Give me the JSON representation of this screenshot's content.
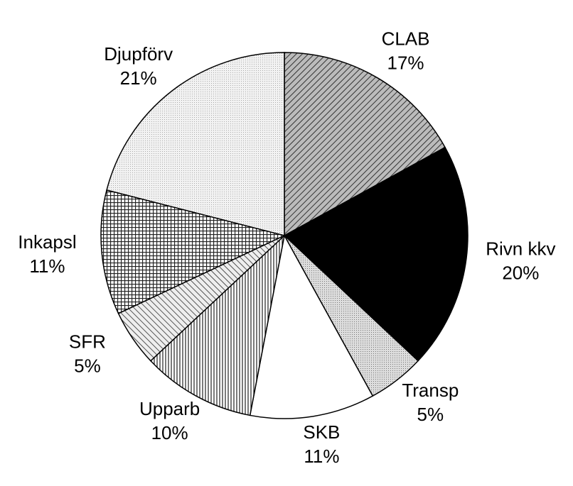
{
  "chart_data": {
    "type": "pie",
    "categories": [
      "CLAB",
      "Rivn kkv",
      "Transp",
      "SKB",
      "Upparb",
      "SFR",
      "Inkapsl",
      "Djupförv"
    ],
    "values": [
      17,
      20,
      5,
      11,
      10,
      5,
      11,
      21
    ],
    "value_labels": [
      "17%",
      "20%",
      "5%",
      "11%",
      "10%",
      "5%",
      "11%",
      "21%"
    ]
  }
}
